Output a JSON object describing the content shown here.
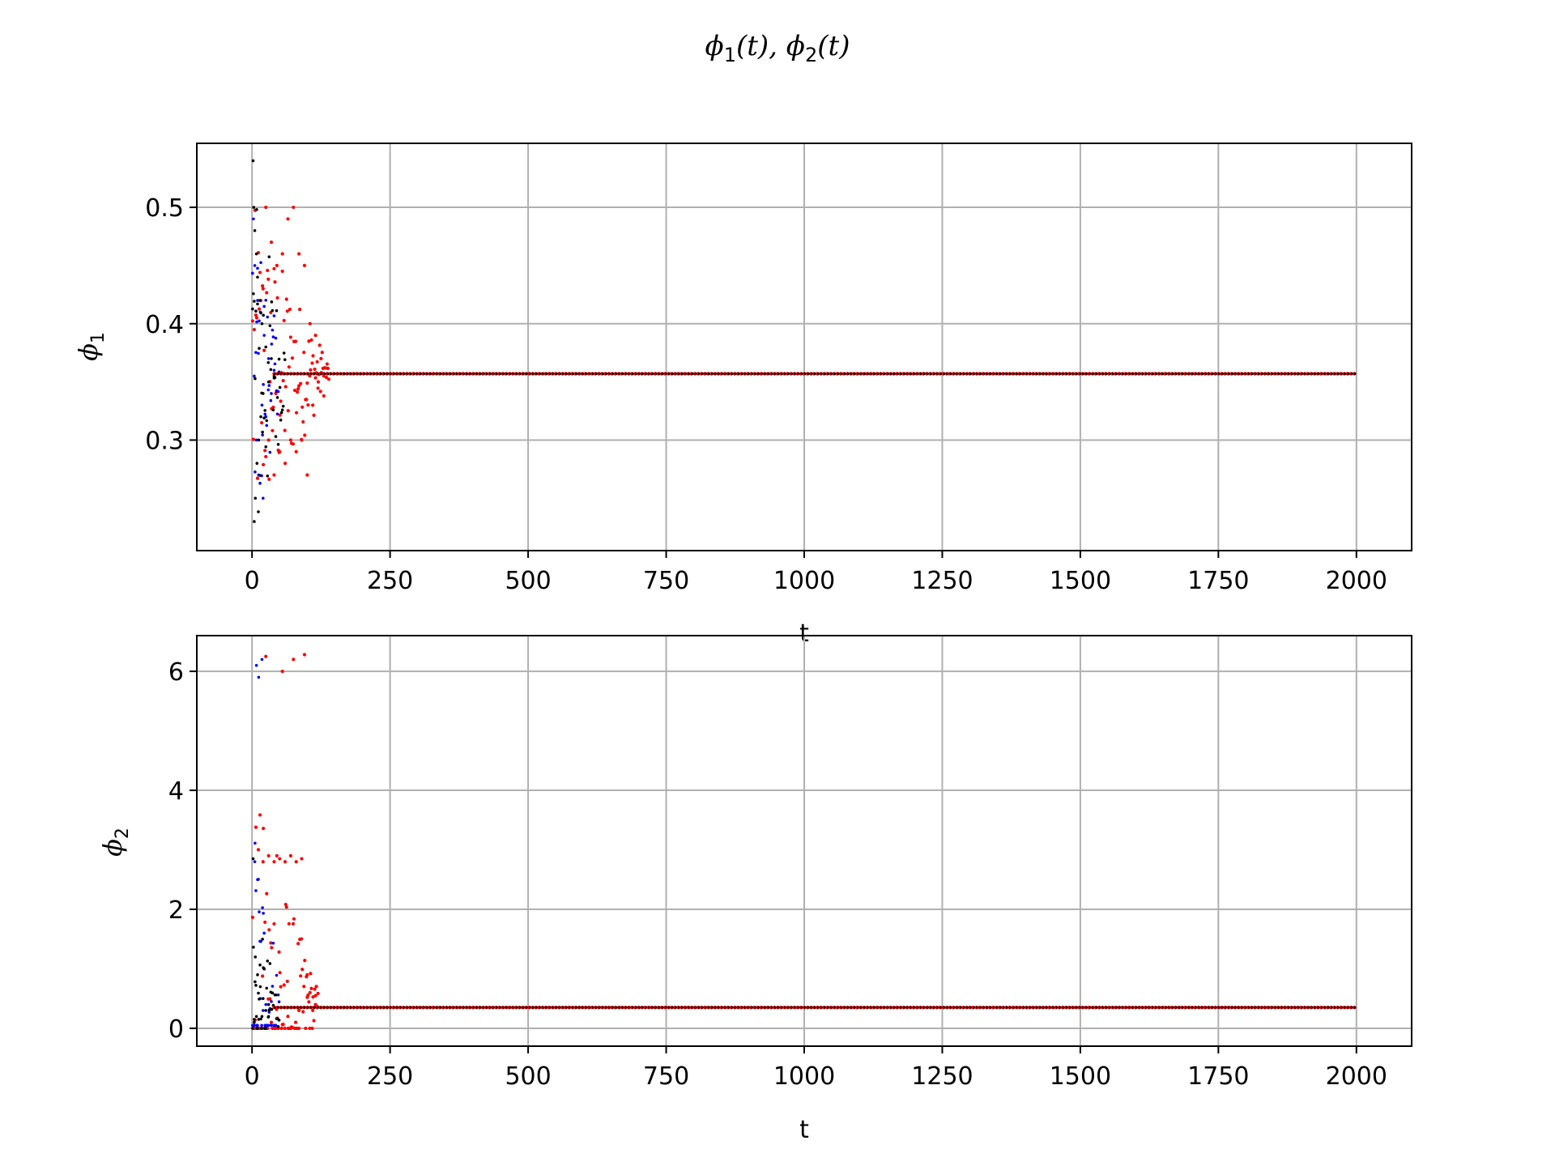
{
  "figure": {
    "title_main_1": "ϕ",
    "title_sub_1": "1",
    "title_mid": "(t), ",
    "title_main_2": "ϕ",
    "title_sub_2": "2",
    "title_end": "(t)"
  },
  "chart_data": [
    {
      "type": "scatter",
      "title": "",
      "xlabel": "t",
      "ylabel": "ϕ1",
      "ylabel_main": "ϕ",
      "ylabel_sub": "1",
      "xlim": [
        -100,
        2100
      ],
      "ylim": [
        0.205,
        0.555
      ],
      "xticks": [
        0,
        250,
        500,
        750,
        1000,
        1250,
        1500,
        1750,
        2000
      ],
      "xtick_labels": [
        "0",
        "250",
        "500",
        "750",
        "1000",
        "1250",
        "1500",
        "1750",
        "2000"
      ],
      "yticks": [
        0.3,
        0.4,
        0.5
      ],
      "ytick_labels": [
        "0.3",
        "0.4",
        "0.5"
      ],
      "grid": true,
      "series": [
        {
          "color": "#ff0000",
          "equilibrium": 0.357,
          "transient_end": 140,
          "transient_min": 0.26,
          "transient_max": 0.505,
          "points": [
            [
              20,
              0.43
            ],
            [
              25,
              0.5
            ],
            [
              30,
              0.3
            ],
            [
              35,
              0.47
            ],
            [
              40,
              0.27
            ],
            [
              45,
              0.45
            ],
            [
              50,
              0.29
            ],
            [
              55,
              0.46
            ],
            [
              60,
              0.28
            ],
            [
              65,
              0.49
            ],
            [
              70,
              0.3
            ],
            [
              75,
              0.5
            ],
            [
              80,
              0.29
            ],
            [
              85,
              0.46
            ],
            [
              90,
              0.3
            ],
            [
              95,
              0.45
            ],
            [
              100,
              0.27
            ],
            [
              105,
              0.4
            ],
            [
              110,
              0.33
            ],
            [
              115,
              0.39
            ],
            [
              120,
              0.35
            ],
            [
              125,
              0.37
            ],
            [
              130,
              0.355
            ]
          ]
        },
        {
          "color": "#0000ff",
          "equilibrium": 0.357,
          "transient_end": 50,
          "transient_min": 0.24,
          "transient_max": 0.49,
          "points": [
            [
              5,
              0.45
            ],
            [
              8,
              0.3
            ],
            [
              10,
              0.42
            ],
            [
              12,
              0.27
            ],
            [
              15,
              0.41
            ],
            [
              18,
              0.33
            ],
            [
              20,
              0.25
            ],
            [
              22,
              0.39
            ],
            [
              25,
              0.32
            ],
            [
              30,
              0.37
            ],
            [
              35,
              0.34
            ],
            [
              40,
              0.36
            ]
          ]
        },
        {
          "color": "#000000",
          "equilibrium": 0.357,
          "transient_end": 60,
          "transient_min": 0.22,
          "transient_max": 0.54,
          "points": [
            [
              2,
              0.54
            ],
            [
              3,
              0.5
            ],
            [
              4,
              0.23
            ],
            [
              5,
              0.48
            ],
            [
              6,
              0.25
            ],
            [
              8,
              0.46
            ],
            [
              9,
              0.28
            ],
            [
              10,
              0.44
            ],
            [
              12,
              0.3
            ],
            [
              14,
              0.42
            ],
            [
              16,
              0.32
            ],
            [
              18,
              0.4
            ],
            [
              20,
              0.34
            ],
            [
              25,
              0.38
            ],
            [
              30,
              0.35
            ],
            [
              35,
              0.37
            ],
            [
              40,
              0.355
            ]
          ]
        }
      ]
    },
    {
      "type": "scatter",
      "title": "",
      "xlabel": "t",
      "ylabel": "ϕ2",
      "ylabel_main": "ϕ",
      "ylabel_sub": "2",
      "xlim": [
        -100,
        2100
      ],
      "ylim": [
        -0.3,
        6.6
      ],
      "xticks": [
        0,
        250,
        500,
        750,
        1000,
        1250,
        1500,
        1750,
        2000
      ],
      "xtick_labels": [
        "0",
        "250",
        "500",
        "750",
        "1000",
        "1250",
        "1500",
        "1750",
        "2000"
      ],
      "yticks": [
        0,
        2,
        4,
        6
      ],
      "ytick_labels": [
        "0",
        "2",
        "4",
        "6"
      ],
      "grid": true,
      "series": [
        {
          "color": "#ff0000",
          "equilibrium": 0.35,
          "transient_end": 120,
          "transient_min": 0.0,
          "transient_max": 6.28,
          "points": [
            [
              20,
              2.8
            ],
            [
              25,
              6.25
            ],
            [
              30,
              2.9
            ],
            [
              35,
              0.1
            ],
            [
              40,
              2.8
            ],
            [
              45,
              2.9
            ],
            [
              50,
              2.85
            ],
            [
              55,
              6.0
            ],
            [
              60,
              2.8
            ],
            [
              65,
              0.2
            ],
            [
              70,
              2.9
            ],
            [
              75,
              6.2
            ],
            [
              80,
              2.8
            ],
            [
              85,
              0.3
            ],
            [
              90,
              2.85
            ],
            [
              95,
              6.28
            ],
            [
              100,
              0.9
            ],
            [
              105,
              0.6
            ],
            [
              110,
              0.3
            ],
            [
              115,
              0.4
            ]
          ]
        },
        {
          "color": "#0000ff",
          "equilibrium": 0.35,
          "transient_end": 50,
          "transient_min": 0.05,
          "transient_max": 6.25,
          "points": [
            [
              5,
              2.8
            ],
            [
              8,
              6.1
            ],
            [
              10,
              2.5
            ],
            [
              12,
              5.9
            ],
            [
              15,
              0.5
            ],
            [
              18,
              6.2
            ],
            [
              20,
              0.3
            ],
            [
              22,
              1.0
            ],
            [
              25,
              0.4
            ],
            [
              30,
              0.2
            ],
            [
              35,
              0.45
            ],
            [
              40,
              0.35
            ]
          ]
        },
        {
          "color": "#000000",
          "equilibrium": 0.35,
          "transient_end": 50,
          "transient_min": 0.0,
          "transient_max": 2.85,
          "points": [
            [
              2,
              2.85
            ],
            [
              4,
              0.1
            ],
            [
              6,
              1.2
            ],
            [
              8,
              0.2
            ],
            [
              10,
              0.9
            ],
            [
              12,
              0.15
            ],
            [
              15,
              0.7
            ],
            [
              18,
              0.2
            ],
            [
              20,
              0.5
            ],
            [
              25,
              0.3
            ],
            [
              30,
              0.4
            ],
            [
              35,
              0.32
            ],
            [
              40,
              0.36
            ]
          ]
        }
      ]
    }
  ]
}
